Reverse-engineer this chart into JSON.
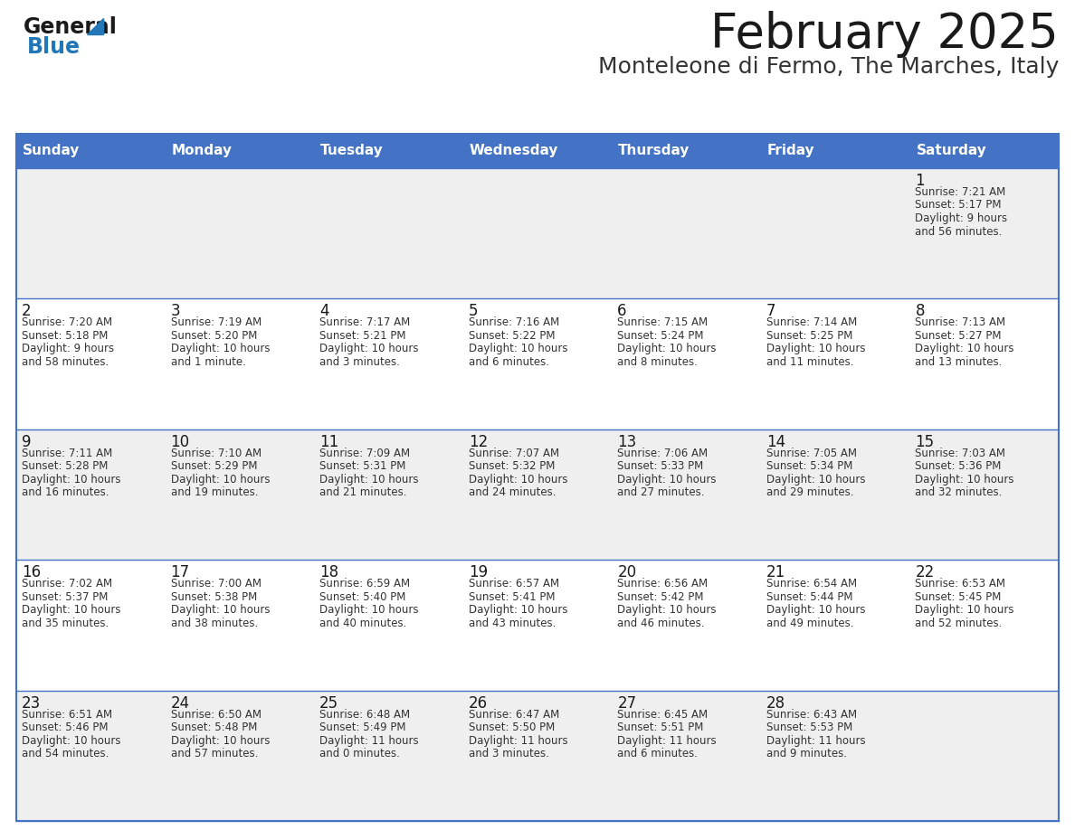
{
  "title": "February 2025",
  "subtitle": "Monteleone di Fermo, The Marches, Italy",
  "header_color": "#4472C4",
  "header_text_color": "#FFFFFF",
  "cell_bg_even": "#EFEFEF",
  "cell_bg_odd": "#FFFFFF",
  "text_color": "#333333",
  "days_of_week": [
    "Sunday",
    "Monday",
    "Tuesday",
    "Wednesday",
    "Thursday",
    "Friday",
    "Saturday"
  ],
  "weeks": [
    [
      {
        "day": "",
        "sunrise": "",
        "sunset": "",
        "daylight1": "",
        "daylight2": ""
      },
      {
        "day": "",
        "sunrise": "",
        "sunset": "",
        "daylight1": "",
        "daylight2": ""
      },
      {
        "day": "",
        "sunrise": "",
        "sunset": "",
        "daylight1": "",
        "daylight2": ""
      },
      {
        "day": "",
        "sunrise": "",
        "sunset": "",
        "daylight1": "",
        "daylight2": ""
      },
      {
        "day": "",
        "sunrise": "",
        "sunset": "",
        "daylight1": "",
        "daylight2": ""
      },
      {
        "day": "",
        "sunrise": "",
        "sunset": "",
        "daylight1": "",
        "daylight2": ""
      },
      {
        "day": "1",
        "sunrise": "7:21 AM",
        "sunset": "5:17 PM",
        "daylight1": "9 hours",
        "daylight2": "and 56 minutes."
      }
    ],
    [
      {
        "day": "2",
        "sunrise": "7:20 AM",
        "sunset": "5:18 PM",
        "daylight1": "9 hours",
        "daylight2": "and 58 minutes."
      },
      {
        "day": "3",
        "sunrise": "7:19 AM",
        "sunset": "5:20 PM",
        "daylight1": "10 hours",
        "daylight2": "and 1 minute."
      },
      {
        "day": "4",
        "sunrise": "7:17 AM",
        "sunset": "5:21 PM",
        "daylight1": "10 hours",
        "daylight2": "and 3 minutes."
      },
      {
        "day": "5",
        "sunrise": "7:16 AM",
        "sunset": "5:22 PM",
        "daylight1": "10 hours",
        "daylight2": "and 6 minutes."
      },
      {
        "day": "6",
        "sunrise": "7:15 AM",
        "sunset": "5:24 PM",
        "daylight1": "10 hours",
        "daylight2": "and 8 minutes."
      },
      {
        "day": "7",
        "sunrise": "7:14 AM",
        "sunset": "5:25 PM",
        "daylight1": "10 hours",
        "daylight2": "and 11 minutes."
      },
      {
        "day": "8",
        "sunrise": "7:13 AM",
        "sunset": "5:27 PM",
        "daylight1": "10 hours",
        "daylight2": "and 13 minutes."
      }
    ],
    [
      {
        "day": "9",
        "sunrise": "7:11 AM",
        "sunset": "5:28 PM",
        "daylight1": "10 hours",
        "daylight2": "and 16 minutes."
      },
      {
        "day": "10",
        "sunrise": "7:10 AM",
        "sunset": "5:29 PM",
        "daylight1": "10 hours",
        "daylight2": "and 19 minutes."
      },
      {
        "day": "11",
        "sunrise": "7:09 AM",
        "sunset": "5:31 PM",
        "daylight1": "10 hours",
        "daylight2": "and 21 minutes."
      },
      {
        "day": "12",
        "sunrise": "7:07 AM",
        "sunset": "5:32 PM",
        "daylight1": "10 hours",
        "daylight2": "and 24 minutes."
      },
      {
        "day": "13",
        "sunrise": "7:06 AM",
        "sunset": "5:33 PM",
        "daylight1": "10 hours",
        "daylight2": "and 27 minutes."
      },
      {
        "day": "14",
        "sunrise": "7:05 AM",
        "sunset": "5:34 PM",
        "daylight1": "10 hours",
        "daylight2": "and 29 minutes."
      },
      {
        "day": "15",
        "sunrise": "7:03 AM",
        "sunset": "5:36 PM",
        "daylight1": "10 hours",
        "daylight2": "and 32 minutes."
      }
    ],
    [
      {
        "day": "16",
        "sunrise": "7:02 AM",
        "sunset": "5:37 PM",
        "daylight1": "10 hours",
        "daylight2": "and 35 minutes."
      },
      {
        "day": "17",
        "sunrise": "7:00 AM",
        "sunset": "5:38 PM",
        "daylight1": "10 hours",
        "daylight2": "and 38 minutes."
      },
      {
        "day": "18",
        "sunrise": "6:59 AM",
        "sunset": "5:40 PM",
        "daylight1": "10 hours",
        "daylight2": "and 40 minutes."
      },
      {
        "day": "19",
        "sunrise": "6:57 AM",
        "sunset": "5:41 PM",
        "daylight1": "10 hours",
        "daylight2": "and 43 minutes."
      },
      {
        "day": "20",
        "sunrise": "6:56 AM",
        "sunset": "5:42 PM",
        "daylight1": "10 hours",
        "daylight2": "and 46 minutes."
      },
      {
        "day": "21",
        "sunrise": "6:54 AM",
        "sunset": "5:44 PM",
        "daylight1": "10 hours",
        "daylight2": "and 49 minutes."
      },
      {
        "day": "22",
        "sunrise": "6:53 AM",
        "sunset": "5:45 PM",
        "daylight1": "10 hours",
        "daylight2": "and 52 minutes."
      }
    ],
    [
      {
        "day": "23",
        "sunrise": "6:51 AM",
        "sunset": "5:46 PM",
        "daylight1": "10 hours",
        "daylight2": "and 54 minutes."
      },
      {
        "day": "24",
        "sunrise": "6:50 AM",
        "sunset": "5:48 PM",
        "daylight1": "10 hours",
        "daylight2": "and 57 minutes."
      },
      {
        "day": "25",
        "sunrise": "6:48 AM",
        "sunset": "5:49 PM",
        "daylight1": "11 hours",
        "daylight2": "and 0 minutes."
      },
      {
        "day": "26",
        "sunrise": "6:47 AM",
        "sunset": "5:50 PM",
        "daylight1": "11 hours",
        "daylight2": "and 3 minutes."
      },
      {
        "day": "27",
        "sunrise": "6:45 AM",
        "sunset": "5:51 PM",
        "daylight1": "11 hours",
        "daylight2": "and 6 minutes."
      },
      {
        "day": "28",
        "sunrise": "6:43 AM",
        "sunset": "5:53 PM",
        "daylight1": "11 hours",
        "daylight2": "and 9 minutes."
      },
      {
        "day": "",
        "sunrise": "",
        "sunset": "",
        "daylight1": "",
        "daylight2": ""
      }
    ]
  ],
  "logo_text_general": "General",
  "logo_text_blue": "Blue",
  "logo_color_general": "#1a1a1a",
  "logo_color_blue": "#2177B8",
  "logo_triangle_color": "#2177B8",
  "title_fontsize": 38,
  "subtitle_fontsize": 18,
  "header_fontsize": 11,
  "day_num_fontsize": 12,
  "cell_text_fontsize": 8.5
}
